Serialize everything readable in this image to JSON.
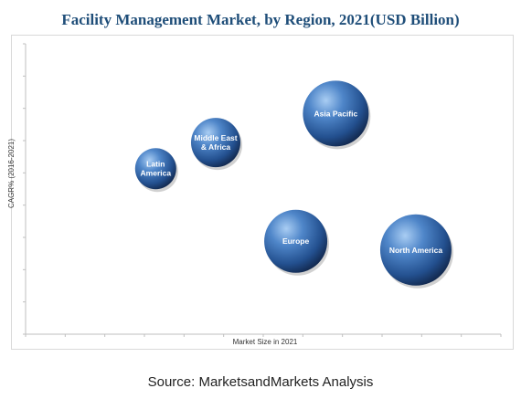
{
  "title": "Facility Management Market, by Region, 2021(USD Billion)",
  "source": "Source: MarketsandMarkets Analysis",
  "chart_data": {
    "type": "bubble",
    "title": "Facility Management Market, by Region, 2021(USD Billion)",
    "xlabel": "Market Size in 2021",
    "ylabel": "CAGR% (2016-2021)",
    "grid": false,
    "series": [
      {
        "label_lines": [
          "Latin",
          "America"
        ],
        "x": 2.6,
        "y": 5.7,
        "size": 0.75
      },
      {
        "label_lines": [
          "Middle East",
          "& Africa"
        ],
        "x": 3.8,
        "y": 6.6,
        "size": 0.9
      },
      {
        "label_lines": [
          "Asia Pacific"
        ],
        "x": 6.2,
        "y": 7.6,
        "size": 1.2
      },
      {
        "label_lines": [
          "Europe"
        ],
        "x": 5.4,
        "y": 3.2,
        "size": 1.15
      },
      {
        "label_lines": [
          "North America"
        ],
        "x": 7.8,
        "y": 2.9,
        "size": 1.3
      }
    ],
    "xlim": [
      0,
      9.5
    ],
    "ylim": [
      0,
      10
    ]
  },
  "colors": {
    "bubble_light": "#8ab6e8",
    "bubble_mid": "#3f76b8",
    "bubble_dark": "#15315e",
    "title": "#1f4e79"
  }
}
